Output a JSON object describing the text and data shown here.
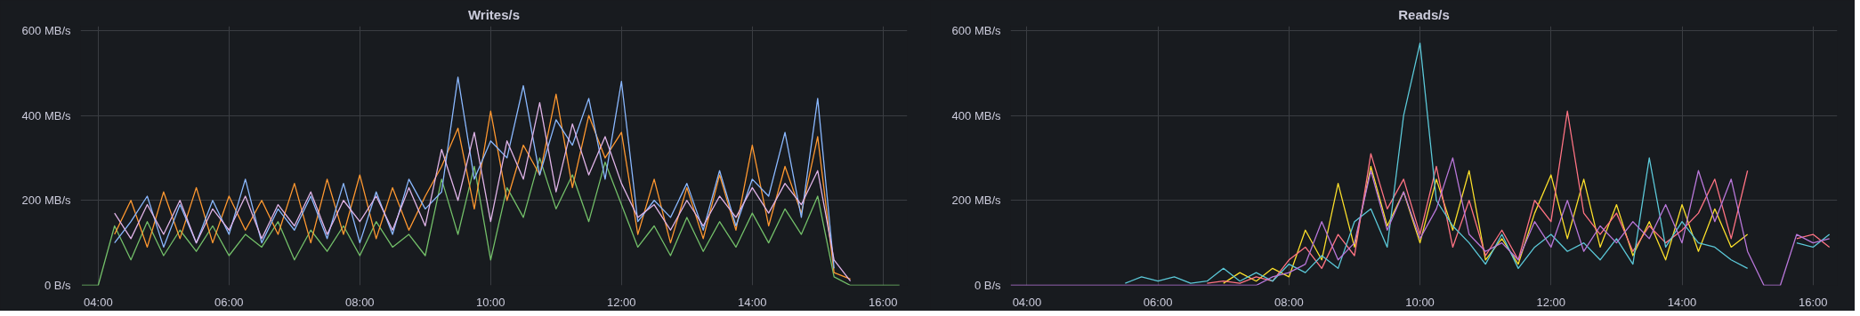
{
  "chart_data": [
    {
      "type": "line",
      "title": "Writes/s",
      "x": [
        3.75,
        4.0,
        4.25,
        4.5,
        4.75,
        5.0,
        5.25,
        5.5,
        5.75,
        6.0,
        6.25,
        6.5,
        6.75,
        7.0,
        7.25,
        7.5,
        7.75,
        8.0,
        8.25,
        8.5,
        8.75,
        9.0,
        9.25,
        9.5,
        9.75,
        10.0,
        10.25,
        10.5,
        10.75,
        11.0,
        11.25,
        11.5,
        11.75,
        12.0,
        12.25,
        12.5,
        12.75,
        13.0,
        13.25,
        13.5,
        13.75,
        14.0,
        14.25,
        14.5,
        14.75,
        15.0,
        15.25,
        15.5,
        15.75,
        16.0,
        16.25
      ],
      "series": [
        {
          "color": "#73bf69",
          "values": [
            0,
            0,
            140,
            60,
            150,
            70,
            130,
            80,
            140,
            70,
            120,
            90,
            150,
            60,
            130,
            80,
            140,
            70,
            150,
            90,
            120,
            70,
            250,
            120,
            280,
            60,
            230,
            160,
            300,
            180,
            260,
            150,
            290,
            190,
            90,
            140,
            70,
            160,
            80,
            150,
            90,
            170,
            100,
            180,
            120,
            210,
            20,
            0,
            0,
            0,
            0
          ]
        },
        {
          "color": "#ff9830",
          "values": [
            null,
            null,
            120,
            200,
            90,
            220,
            110,
            230,
            100,
            210,
            130,
            200,
            120,
            240,
            100,
            250,
            120,
            260,
            110,
            230,
            130,
            210,
            280,
            370,
            180,
            410,
            200,
            330,
            260,
            450,
            230,
            400,
            300,
            360,
            120,
            250,
            100,
            230,
            110,
            260,
            130,
            330,
            140,
            280,
            170,
            350,
            30,
            15,
            null,
            null,
            null
          ]
        },
        {
          "color": "#8ab8ff",
          "values": [
            null,
            null,
            100,
            150,
            210,
            90,
            190,
            100,
            200,
            120,
            250,
            100,
            180,
            130,
            210,
            110,
            240,
            100,
            220,
            120,
            250,
            180,
            220,
            490,
            250,
            340,
            300,
            470,
            260,
            390,
            330,
            440,
            250,
            480,
            150,
            200,
            160,
            240,
            130,
            270,
            140,
            250,
            210,
            360,
            160,
            440,
            40,
            null,
            null,
            null,
            null
          ]
        },
        {
          "color": "#e0b4e8",
          "values": [
            null,
            null,
            170,
            110,
            190,
            120,
            200,
            100,
            180,
            130,
            210,
            110,
            190,
            140,
            220,
            120,
            200,
            150,
            210,
            130,
            230,
            140,
            320,
            200,
            360,
            150,
            340,
            250,
            430,
            220,
            380,
            260,
            350,
            240,
            160,
            190,
            130,
            200,
            140,
            210,
            160,
            230,
            170,
            240,
            190,
            270,
            60,
            10,
            null,
            null,
            null
          ]
        }
      ],
      "xlim": [
        3.73,
        16.37
      ],
      "ylim": [
        0,
        610
      ],
      "xticks": [
        {
          "value": 4,
          "label": "04:00"
        },
        {
          "value": 6,
          "label": "06:00"
        },
        {
          "value": 8,
          "label": "08:00"
        },
        {
          "value": 10,
          "label": "10:00"
        },
        {
          "value": 12,
          "label": "12:00"
        },
        {
          "value": 14,
          "label": "14:00"
        },
        {
          "value": 16,
          "label": "16:00"
        }
      ],
      "yticks": [
        {
          "value": 0,
          "label": "0 B/s"
        },
        {
          "value": 200,
          "label": "200 MB/s"
        },
        {
          "value": 400,
          "label": "400 MB/s"
        },
        {
          "value": 600,
          "label": "600 MB/s"
        }
      ],
      "grid": true,
      "marker": "none",
      "line_style": "solid"
    },
    {
      "type": "line",
      "title": "Reads/s",
      "x": [
        3.75,
        4.0,
        4.25,
        4.5,
        4.75,
        5.0,
        5.25,
        5.5,
        5.75,
        6.0,
        6.25,
        6.5,
        6.75,
        7.0,
        7.25,
        7.5,
        7.75,
        8.0,
        8.25,
        8.5,
        8.75,
        9.0,
        9.25,
        9.5,
        9.75,
        10.0,
        10.25,
        10.5,
        10.75,
        11.0,
        11.25,
        11.5,
        11.75,
        12.0,
        12.25,
        12.5,
        12.75,
        13.0,
        13.25,
        13.5,
        13.75,
        14.0,
        14.25,
        14.5,
        14.75,
        15.0,
        15.25,
        15.5,
        15.75,
        16.0,
        16.25
      ],
      "series": [
        {
          "color": "#fade2a",
          "values": [
            null,
            null,
            null,
            null,
            null,
            null,
            null,
            null,
            null,
            null,
            null,
            null,
            null,
            5,
            30,
            10,
            40,
            20,
            130,
            60,
            240,
            90,
            280,
            140,
            220,
            100,
            250,
            130,
            270,
            60,
            110,
            50,
            170,
            260,
            110,
            250,
            90,
            190,
            70,
            150,
            60,
            190,
            80,
            180,
            90,
            120,
            null,
            null,
            null,
            null,
            null
          ]
        },
        {
          "color": "#ff7383",
          "values": [
            null,
            null,
            null,
            null,
            null,
            null,
            null,
            null,
            null,
            null,
            null,
            null,
            5,
            10,
            5,
            20,
            10,
            60,
            90,
            40,
            120,
            70,
            310,
            180,
            250,
            120,
            280,
            90,
            200,
            70,
            130,
            60,
            200,
            150,
            410,
            170,
            120,
            170,
            80,
            140,
            100,
            130,
            170,
            250,
            110,
            270,
            null,
            null,
            110,
            120,
            90
          ]
        },
        {
          "color": "#5bc8d8",
          "values": [
            null,
            null,
            null,
            null,
            null,
            null,
            null,
            5,
            20,
            10,
            20,
            5,
            10,
            40,
            10,
            30,
            10,
            50,
            30,
            70,
            40,
            150,
            180,
            90,
            400,
            570,
            200,
            140,
            100,
            50,
            120,
            40,
            90,
            120,
            80,
            100,
            60,
            110,
            50,
            300,
            90,
            150,
            100,
            90,
            60,
            40,
            null,
            null,
            100,
            90,
            120
          ]
        },
        {
          "color": "#b877d9",
          "values": [
            0,
            0,
            0,
            0,
            0,
            0,
            0,
            0,
            0,
            0,
            0,
            0,
            0,
            0,
            0,
            0,
            20,
            30,
            50,
            150,
            60,
            100,
            270,
            130,
            220,
            110,
            180,
            300,
            120,
            80,
            100,
            60,
            150,
            90,
            200,
            80,
            140,
            100,
            150,
            110,
            190,
            100,
            270,
            150,
            250,
            80,
            0,
            0,
            120,
            100,
            110
          ]
        }
      ],
      "xlim": [
        3.75,
        16.37
      ],
      "ylim": [
        0,
        610
      ],
      "xticks": [
        {
          "value": 4,
          "label": "04:00"
        },
        {
          "value": 6,
          "label": "06:00"
        },
        {
          "value": 8,
          "label": "08:00"
        },
        {
          "value": 10,
          "label": "10:00"
        },
        {
          "value": 12,
          "label": "12:00"
        },
        {
          "value": 14,
          "label": "14:00"
        },
        {
          "value": 16,
          "label": "16:00"
        }
      ],
      "yticks": [
        {
          "value": 0,
          "label": "0 B/s"
        },
        {
          "value": 200,
          "label": "200 MB/s"
        },
        {
          "value": 400,
          "label": "400 MB/s"
        },
        {
          "value": 600,
          "label": "600 MB/s"
        }
      ],
      "grid": true,
      "marker": "none",
      "line_style": "solid"
    }
  ]
}
